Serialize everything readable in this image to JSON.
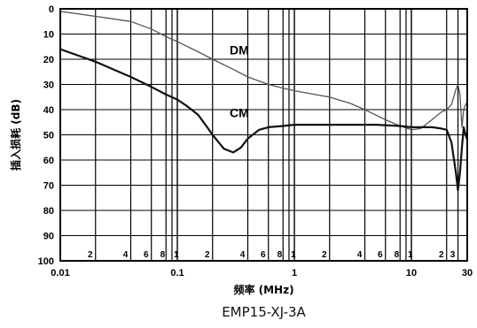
{
  "chart_data": {
    "type": "line",
    "title": "EMP15-XJ-3A",
    "xlabel": "频率 (MHz)",
    "ylabel": "插入损耗 (dB)",
    "x_scale": "log",
    "xlim": [
      0.01,
      30
    ],
    "ylim": [
      0,
      100
    ],
    "y_inverted": true,
    "grid": true,
    "y_ticks": [
      "0",
      "10",
      "20",
      "30",
      "40",
      "50",
      "60",
      "70",
      "80",
      "90",
      "100"
    ],
    "x_ticks": [
      {
        "v": 0.01,
        "label": "0.01"
      },
      {
        "v": 0.1,
        "label": "0.1"
      },
      {
        "v": 1,
        "label": "1"
      },
      {
        "v": 10,
        "label": "10"
      },
      {
        "v": 30,
        "label": "30"
      }
    ],
    "x_minor_ticks": [
      {
        "v": 0.02,
        "label": "2"
      },
      {
        "v": 0.04,
        "label": "4"
      },
      {
        "v": 0.06,
        "label": "6"
      },
      {
        "v": 0.08,
        "label": "8"
      },
      {
        "v": 0.09,
        "label": "1"
      },
      {
        "v": 0.2,
        "label": "2"
      },
      {
        "v": 0.4,
        "label": "4"
      },
      {
        "v": 0.6,
        "label": "6"
      },
      {
        "v": 0.8,
        "label": "8"
      },
      {
        "v": 0.9,
        "label": "1"
      },
      {
        "v": 2,
        "label": "2"
      },
      {
        "v": 4,
        "label": "4"
      },
      {
        "v": 6,
        "label": "6"
      },
      {
        "v": 8,
        "label": "8"
      },
      {
        "v": 9,
        "label": "1"
      },
      {
        "v": 20,
        "label": "2"
      },
      {
        "v": 25,
        "label": "3"
      }
    ],
    "series": [
      {
        "name": "DM",
        "x": [
          0.01,
          0.02,
          0.04,
          0.06,
          0.08,
          0.1,
          0.15,
          0.2,
          0.3,
          0.4,
          0.6,
          0.8,
          1,
          1.5,
          2,
          3,
          4,
          6,
          8,
          10,
          12,
          15,
          18,
          20,
          22,
          24,
          25,
          26,
          27,
          28,
          29,
          30
        ],
        "y": [
          1,
          3,
          5,
          8,
          11,
          13,
          17,
          20,
          24,
          27,
          30,
          31.5,
          32.5,
          34,
          35,
          37.5,
          40,
          44,
          46.5,
          48,
          47.5,
          44,
          41,
          40,
          38,
          32,
          30,
          34,
          47,
          40,
          38,
          37
        ]
      },
      {
        "name": "CM",
        "x": [
          0.01,
          0.02,
          0.04,
          0.06,
          0.08,
          0.1,
          0.12,
          0.15,
          0.18,
          0.2,
          0.25,
          0.3,
          0.35,
          0.4,
          0.5,
          0.6,
          0.8,
          1,
          1.5,
          2,
          3,
          5,
          8,
          10,
          12,
          15,
          18,
          20,
          22,
          24,
          25,
          26,
          27,
          28,
          29,
          30
        ],
        "y": [
          16,
          21,
          27,
          31,
          34,
          36,
          38.5,
          42,
          47,
          50,
          55.5,
          57,
          55,
          51.5,
          48,
          47,
          46.5,
          46,
          46,
          46,
          46,
          46,
          46.5,
          47,
          47,
          47,
          47.5,
          48,
          53,
          65,
          72,
          65,
          55,
          47,
          50,
          52
        ]
      }
    ],
    "series_labels": [
      {
        "text": "DM",
        "x": 0.28,
        "y": 18
      },
      {
        "text": "CM",
        "x": 0.28,
        "y": 43
      }
    ]
  }
}
